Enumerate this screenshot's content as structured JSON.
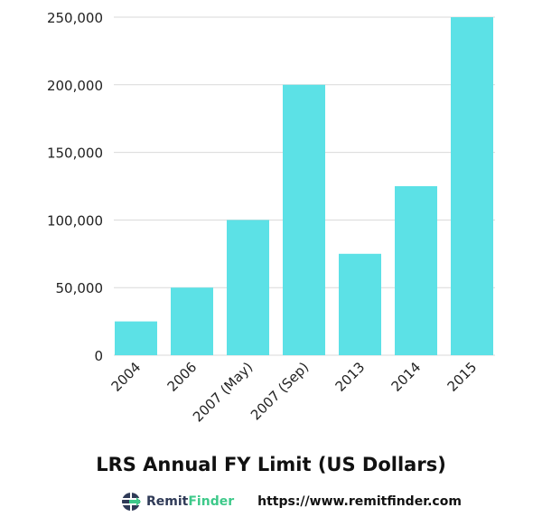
{
  "chart_data": {
    "type": "bar",
    "title": "LRS Annual FY Limit (US Dollars)",
    "xlabel": "",
    "ylabel": "",
    "categories": [
      "2004",
      "2006",
      "2007 (May)",
      "2007 (Sep)",
      "2013",
      "2014",
      "2015"
    ],
    "values": [
      25000,
      50000,
      100000,
      200000,
      75000,
      125000,
      250000
    ],
    "ylim": [
      0,
      250000
    ],
    "yticks": [
      0,
      50000,
      100000,
      150000,
      200000,
      250000
    ],
    "ytick_labels": [
      "0",
      "50,000",
      "100,000",
      "150,000",
      "200,000",
      "250,000"
    ],
    "grid": true,
    "bar_color": "#5ce1e6",
    "grid_color": "#d9d9d9"
  },
  "footer": {
    "logo_part1": "Remit",
    "logo_part2": "Finder",
    "url": "https://www.remitfinder.com"
  }
}
